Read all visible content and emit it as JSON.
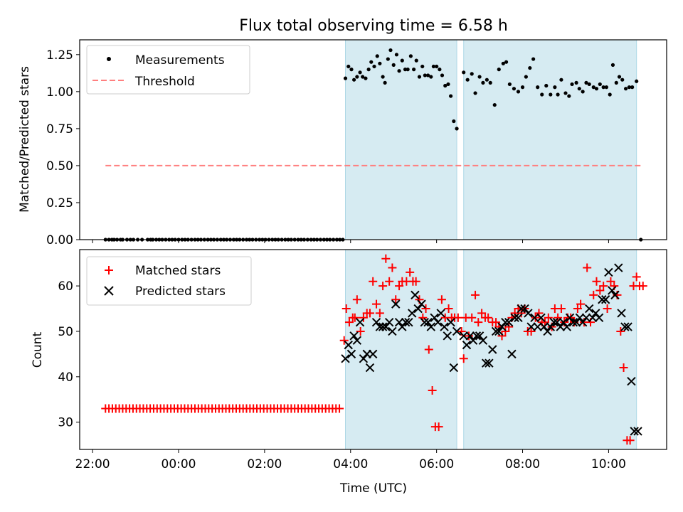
{
  "title": "Flux total observing time = 6.58 h",
  "chart_data": [
    {
      "type": "scatter",
      "ylabel": "Matched/Predicted stars",
      "xlim": [
        -2.3,
        11.35
      ],
      "ylim": [
        0.0,
        1.35
      ],
      "yticks": [
        "0.00",
        "0.25",
        "0.50",
        "0.75",
        "1.00",
        "1.25"
      ],
      "shaded_intervals": [
        [
          3.88,
          6.47
        ],
        [
          6.63,
          10.65
        ]
      ],
      "legend": {
        "location": "upper-left",
        "measurements_label": "Measurements",
        "threshold_label": "Threshold"
      },
      "threshold": {
        "value": 0.5,
        "x_range": [
          -1.7,
          10.75
        ]
      },
      "measurements": {
        "zero_x": [
          -1.7,
          -1.62,
          -1.55,
          -1.5,
          -1.43,
          -1.35,
          -1.3,
          -1.2,
          -1.12,
          -1.05,
          -0.95,
          -0.85,
          -0.72,
          -0.65,
          -0.6,
          -0.52,
          -0.45,
          -0.38,
          -0.3,
          -0.22,
          -0.15,
          -0.08,
          0.0,
          0.08,
          0.15,
          0.22,
          0.3,
          0.38,
          0.45,
          0.52,
          0.6,
          0.68,
          0.75,
          0.82,
          0.9,
          0.98,
          1.05,
          1.12,
          1.2,
          1.28,
          1.35,
          1.42,
          1.5,
          1.58,
          1.65,
          1.72,
          1.8,
          1.88,
          1.95,
          2.02,
          2.1,
          2.18,
          2.25,
          2.32,
          2.4,
          2.48,
          2.55,
          2.62,
          2.7,
          2.78,
          2.85,
          2.92,
          3.0,
          3.08,
          3.15,
          3.22,
          3.3,
          3.38,
          3.45,
          3.52,
          3.6,
          3.68,
          3.75,
          3.82,
          10.75
        ],
        "x": [
          3.88,
          3.95,
          4.02,
          4.08,
          4.15,
          4.22,
          4.28,
          4.35,
          4.42,
          4.48,
          4.55,
          4.62,
          4.68,
          4.75,
          4.8,
          4.87,
          4.93,
          5.0,
          5.07,
          5.13,
          5.2,
          5.27,
          5.33,
          5.4,
          5.47,
          5.53,
          5.6,
          5.67,
          5.73,
          5.8,
          5.87,
          5.93,
          6.0,
          6.07,
          6.13,
          6.2,
          6.27,
          6.33,
          6.4,
          6.47,
          6.63,
          6.72,
          6.82,
          6.9,
          7.0,
          7.08,
          7.17,
          7.25,
          7.35,
          7.45,
          7.55,
          7.62,
          7.7,
          7.8,
          7.9,
          8.0,
          8.08,
          8.17,
          8.25,
          8.35,
          8.45,
          8.55,
          8.65,
          8.75,
          8.82,
          8.9,
          9.0,
          9.08,
          9.15,
          9.25,
          9.32,
          9.4,
          9.48,
          9.55,
          9.65,
          9.72,
          9.8,
          9.88,
          9.95,
          10.03,
          10.1,
          10.18,
          10.25,
          10.32,
          10.4,
          10.48,
          10.55,
          10.65
        ],
        "y": [
          1.09,
          1.17,
          1.15,
          1.08,
          1.1,
          1.13,
          1.1,
          1.09,
          1.15,
          1.2,
          1.17,
          1.24,
          1.19,
          1.1,
          1.06,
          1.22,
          1.28,
          1.18,
          1.25,
          1.14,
          1.21,
          1.15,
          1.15,
          1.24,
          1.15,
          1.21,
          1.1,
          1.17,
          1.11,
          1.11,
          1.1,
          1.17,
          1.17,
          1.15,
          1.11,
          1.04,
          1.05,
          0.97,
          0.8,
          0.75,
          1.13,
          1.08,
          1.12,
          0.99,
          1.1,
          1.06,
          1.08,
          1.06,
          0.91,
          1.15,
          1.19,
          1.2,
          1.05,
          1.02,
          1.0,
          1.03,
          1.1,
          1.16,
          1.22,
          1.03,
          0.98,
          1.04,
          0.98,
          1.03,
          0.98,
          1.08,
          0.99,
          0.97,
          1.05,
          1.06,
          1.02,
          1.0,
          1.06,
          1.05,
          1.03,
          1.02,
          1.05,
          1.03,
          1.03,
          0.98,
          1.18,
          1.06,
          1.1,
          1.08,
          1.02,
          1.03,
          1.03,
          1.07
        ]
      }
    },
    {
      "type": "scatter",
      "xlabel": "Time (UTC)",
      "ylabel": "Count",
      "xlim": [
        -2.3,
        11.35
      ],
      "ylim": [
        24,
        68
      ],
      "yticks": [
        "30",
        "40",
        "50",
        "60"
      ],
      "xticks": [
        {
          "value": -2,
          "label": "22:00"
        },
        {
          "value": 0,
          "label": "00:00"
        },
        {
          "value": 2,
          "label": "02:00"
        },
        {
          "value": 4,
          "label": "04:00"
        },
        {
          "value": 6,
          "label": "06:00"
        },
        {
          "value": 8,
          "label": "08:00"
        },
        {
          "value": 10,
          "label": "10:00"
        }
      ],
      "shaded_intervals": [
        [
          3.88,
          6.47
        ],
        [
          6.63,
          10.65
        ]
      ],
      "legend": {
        "location": "upper-left",
        "matched_label": "Matched stars",
        "predicted_label": "Predicted stars"
      },
      "baseline": {
        "x_start": -1.7,
        "x_end": 3.8,
        "step": 0.08,
        "value": 33
      },
      "matched": {
        "x": [
          3.85,
          3.9,
          3.97,
          4.05,
          4.1,
          4.15,
          4.23,
          4.3,
          4.38,
          4.45,
          4.52,
          4.6,
          4.68,
          4.75,
          4.82,
          4.9,
          4.97,
          5.05,
          5.13,
          5.2,
          5.3,
          5.38,
          5.45,
          5.52,
          5.6,
          5.68,
          5.75,
          5.82,
          5.9,
          5.97,
          6.05,
          6.12,
          6.2,
          6.28,
          6.35,
          6.42,
          6.5,
          6.58,
          6.63,
          6.68,
          6.75,
          6.82,
          6.9,
          6.97,
          7.05,
          7.13,
          7.2,
          7.3,
          7.38,
          7.45,
          7.52,
          7.6,
          7.68,
          7.75,
          7.82,
          7.9,
          7.97,
          8.05,
          8.12,
          8.2,
          8.3,
          8.38,
          8.45,
          8.52,
          8.6,
          8.68,
          8.75,
          8.82,
          8.9,
          8.97,
          9.05,
          9.12,
          9.2,
          9.28,
          9.35,
          9.43,
          9.5,
          9.58,
          9.65,
          9.72,
          9.8,
          9.88,
          9.97,
          10.05,
          10.13,
          10.2,
          10.28,
          10.35,
          10.43,
          10.5,
          10.58,
          10.65,
          10.72,
          10.8
        ],
        "y": [
          48,
          55,
          52,
          53,
          53,
          57,
          50,
          53,
          54,
          54,
          61,
          56,
          54,
          60,
          66,
          61,
          64,
          57,
          60,
          61,
          61,
          63,
          61,
          61,
          57,
          53,
          55,
          46,
          37,
          29,
          29,
          57,
          53,
          55,
          53,
          53,
          53,
          50,
          44,
          53,
          49,
          53,
          58,
          52,
          54,
          53,
          53,
          52,
          52,
          51,
          49,
          50,
          51,
          53,
          54,
          55,
          54,
          55,
          50,
          50,
          53,
          54,
          52,
          52,
          53,
          51,
          55,
          53,
          55,
          52,
          53,
          53,
          52,
          55,
          56,
          52,
          64,
          52,
          58,
          61,
          59,
          60,
          55,
          61,
          60,
          58,
          50,
          42,
          26,
          26,
          60,
          62,
          60,
          60
        ],
        "note": ""
      },
      "predicted": {
        "x": [
          3.88,
          3.95,
          4.02,
          4.08,
          4.15,
          4.22,
          4.3,
          4.38,
          4.45,
          4.52,
          4.6,
          4.68,
          4.75,
          4.82,
          4.9,
          4.97,
          5.05,
          5.13,
          5.2,
          5.28,
          5.35,
          5.43,
          5.5,
          5.57,
          5.65,
          5.72,
          5.8,
          5.87,
          5.95,
          6.03,
          6.1,
          6.18,
          6.25,
          6.33,
          6.4,
          6.47,
          6.63,
          6.7,
          6.78,
          6.85,
          6.93,
          7.0,
          7.08,
          7.15,
          7.22,
          7.3,
          7.38,
          7.45,
          7.52,
          7.6,
          7.68,
          7.75,
          7.82,
          7.9,
          7.97,
          8.05,
          8.13,
          8.2,
          8.28,
          8.35,
          8.43,
          8.5,
          8.58,
          8.65,
          8.73,
          8.8,
          8.88,
          8.95,
          9.03,
          9.1,
          9.18,
          9.25,
          9.33,
          9.4,
          9.48,
          9.55,
          9.63,
          9.7,
          9.78,
          9.85,
          9.93,
          10.0,
          10.08,
          10.15,
          10.23,
          10.3,
          10.38,
          10.45,
          10.53,
          10.6,
          10.68
        ],
        "y": [
          44,
          47,
          45,
          49,
          48,
          52,
          44,
          45,
          42,
          45,
          52,
          51,
          51,
          51,
          52,
          50,
          56,
          52,
          51,
          52,
          52,
          54,
          58,
          55,
          56,
          52,
          52,
          51,
          53,
          52,
          54,
          51,
          49,
          52,
          42,
          50,
          49,
          47,
          49,
          48,
          49,
          49,
          48,
          43,
          43,
          46,
          50,
          50,
          51,
          52,
          52,
          45,
          53,
          53,
          55,
          55,
          54,
          51,
          53,
          51,
          53,
          51,
          50,
          51,
          52,
          52,
          51,
          52,
          51,
          53,
          52,
          52,
          53,
          52,
          53,
          55,
          53,
          54,
          53,
          57,
          57,
          63,
          59,
          58,
          64,
          54,
          51,
          51,
          39,
          28,
          28
        ]
      }
    }
  ]
}
